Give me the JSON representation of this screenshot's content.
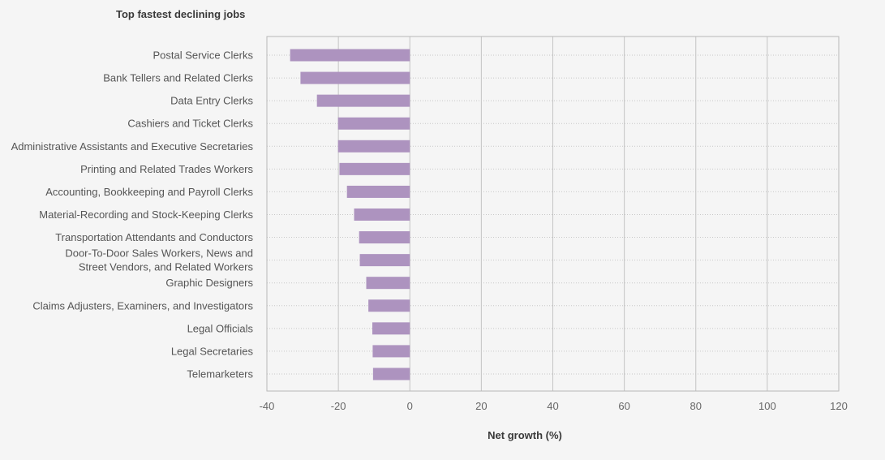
{
  "chart_data": {
    "type": "bar",
    "orientation": "horizontal",
    "title": "Top fastest declining jobs",
    "xlabel": "Net growth (%)",
    "ylabel": "",
    "xlim": [
      -40,
      120
    ],
    "xticks": [
      -40,
      -20,
      0,
      20,
      40,
      60,
      80,
      100,
      120
    ],
    "grid": "vertical solid lines at ticks, dotted horizontal lines per category",
    "legend": "none",
    "bar_color": "#ad93bf",
    "categories": [
      [
        "Postal Service Clerks"
      ],
      [
        "Bank Tellers and Related Clerks"
      ],
      [
        "Data Entry Clerks"
      ],
      [
        "Cashiers and Ticket Clerks"
      ],
      [
        "Administrative Assistants and Executive Secretaries"
      ],
      [
        "Printing and Related Trades Workers"
      ],
      [
        "Accounting, Bookkeeping and Payroll Clerks"
      ],
      [
        "Material-Recording and Stock-Keeping Clerks"
      ],
      [
        "Transportation Attendants and Conductors"
      ],
      [
        "Door-To-Door Sales Workers, News and",
        "Street Vendors, and Related Workers"
      ],
      [
        "Graphic Designers"
      ],
      [
        "Claims Adjusters, Examiners, and Investigators"
      ],
      [
        "Legal Officials"
      ],
      [
        "Legal Secretaries"
      ],
      [
        "Telemarketers"
      ]
    ],
    "values": [
      -33.5,
      -30.6,
      -26,
      -20.1,
      -20.1,
      -19.7,
      -17.6,
      -15.6,
      -14.2,
      -14,
      -12.2,
      -11.6,
      -10.5,
      -10.4,
      -10.3
    ]
  }
}
